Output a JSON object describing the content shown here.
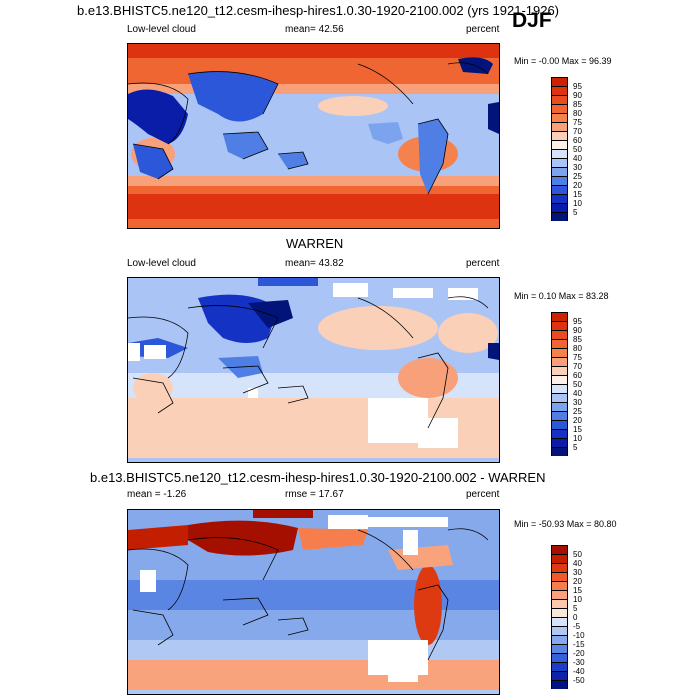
{
  "season": "DJF",
  "panels": [
    {
      "title": "b.e13.BHISTC5.ne120_t12.cesm-ihesp-hires1.0.30-1920-2100.002 (yrs 1921-1926)",
      "left_label": "Low-level cloud",
      "center_label": "mean=  42.56",
      "right_label": "percent",
      "minmax": "Min =  -0.00 Max =  96.39",
      "colorbar": {
        "labels": [
          "95",
          "90",
          "85",
          "80",
          "75",
          "70",
          "60",
          "50",
          "40",
          "30",
          "25",
          "20",
          "15",
          "10",
          "5"
        ],
        "colors": [
          "#cc2200",
          "#dd3311",
          "#e84c20",
          "#ef6633",
          "#f5824d",
          "#f8a07a",
          "#fbd0b8",
          "#fdf0e8",
          "#d6e4fb",
          "#a9c4f5",
          "#7ba3ee",
          "#4f7ee5",
          "#2c57d8",
          "#1432c4",
          "#0a1da8",
          "#02137a"
        ]
      }
    },
    {
      "title": "WARREN",
      "left_label": "Low-level cloud",
      "center_label": "mean=  43.82",
      "right_label": "percent",
      "minmax": "Min =   0.10 Max =  83.28",
      "colorbar": {
        "labels": [
          "95",
          "90",
          "85",
          "80",
          "75",
          "70",
          "60",
          "50",
          "40",
          "30",
          "25",
          "20",
          "15",
          "10",
          "5"
        ],
        "colors": [
          "#cc2200",
          "#dd3311",
          "#e84c20",
          "#ef6633",
          "#f5824d",
          "#f8a07a",
          "#fbd0b8",
          "#fdf0e8",
          "#d6e4fb",
          "#a9c4f5",
          "#7ba3ee",
          "#4f7ee5",
          "#2c57d8",
          "#1432c4",
          "#0a1da8",
          "#02137a"
        ]
      }
    },
    {
      "title": "b.e13.BHISTC5.ne120_t12.cesm-ihesp-hires1.0.30-1920-2100.002 - WARREN",
      "left_label": "mean =  -1.26",
      "center_label": "rmse =  17.67",
      "right_label": "percent",
      "minmax": "Min = -50.93 Max =  80.80",
      "colorbar": {
        "labels": [
          "50",
          "40",
          "30",
          "20",
          "15",
          "10",
          "5",
          "0",
          "-5",
          "-10",
          "-15",
          "-20",
          "-30",
          "-40",
          "-50"
        ],
        "colors": [
          "#a50f00",
          "#c41e00",
          "#de3a12",
          "#ef5a2a",
          "#f67e4d",
          "#f9a37c",
          "#fcc9af",
          "#fbe6da",
          "#d7e3fa",
          "#b0c9f4",
          "#86a9ec",
          "#5b85e2",
          "#3561d6",
          "#1b3fc4",
          "#0c23a8",
          "#021280"
        ]
      }
    }
  ]
}
